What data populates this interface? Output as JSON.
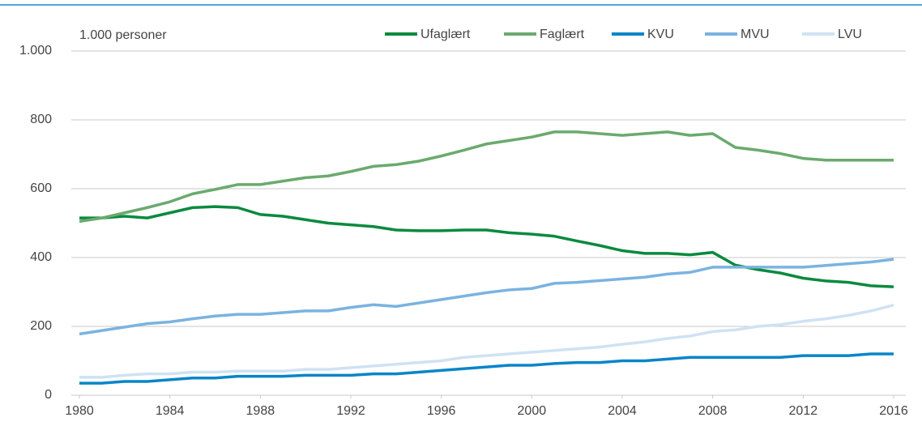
{
  "chart_data": {
    "type": "line",
    "annotation": "1.000 personer",
    "x": [
      1980,
      1981,
      1982,
      1983,
      1984,
      1985,
      1986,
      1987,
      1988,
      1989,
      1990,
      1991,
      1992,
      1993,
      1994,
      1995,
      1996,
      1997,
      1998,
      1999,
      2000,
      2001,
      2002,
      2003,
      2004,
      2005,
      2006,
      2007,
      2008,
      2009,
      2010,
      2011,
      2012,
      2013,
      2014,
      2015,
      2016
    ],
    "xlim": [
      1980,
      2016
    ],
    "xticks": [
      1980,
      1984,
      1988,
      1992,
      1996,
      2000,
      2004,
      2008,
      2012,
      2016
    ],
    "ylim": [
      0,
      1000
    ],
    "yticks": [
      0,
      200,
      400,
      600,
      800,
      {
        "value": 1000,
        "label": "1.000"
      }
    ],
    "grid": true,
    "legend": "top",
    "series": [
      {
        "name": "Ufaglært",
        "color": "#0a8a3e",
        "values": [
          515,
          515,
          520,
          515,
          530,
          545,
          548,
          545,
          525,
          520,
          510,
          500,
          495,
          490,
          480,
          478,
          478,
          480,
          480,
          472,
          468,
          462,
          448,
          435,
          420,
          412,
          412,
          408,
          415,
          378,
          365,
          355,
          340,
          332,
          328,
          318,
          315
        ]
      },
      {
        "name": "Faglært",
        "color": "#6aaa6e",
        "values": [
          505,
          515,
          530,
          545,
          562,
          585,
          598,
          612,
          612,
          622,
          632,
          637,
          650,
          665,
          670,
          680,
          695,
          712,
          730,
          740,
          750,
          765,
          765,
          760,
          755,
          760,
          765,
          755,
          760,
          720,
          712,
          702,
          688,
          683,
          683,
          683,
          683
        ]
      },
      {
        "name": "KVU",
        "color": "#0a85c8",
        "values": [
          35,
          35,
          40,
          40,
          45,
          50,
          50,
          55,
          55,
          55,
          58,
          58,
          58,
          62,
          62,
          67,
          72,
          77,
          82,
          87,
          87,
          92,
          95,
          95,
          100,
          100,
          105,
          110,
          110,
          110,
          110,
          110,
          115,
          115,
          115,
          120,
          120
        ]
      },
      {
        "name": "MVU",
        "color": "#7ab3e0",
        "values": [
          178,
          188,
          198,
          208,
          213,
          222,
          230,
          235,
          235,
          240,
          245,
          245,
          255,
          263,
          258,
          268,
          278,
          288,
          298,
          306,
          310,
          325,
          328,
          333,
          338,
          343,
          352,
          357,
          372,
          372,
          372,
          372,
          372,
          377,
          382,
          387,
          395
        ]
      },
      {
        "name": "LVU",
        "color": "#cfe2f3",
        "values": [
          52,
          52,
          58,
          62,
          62,
          67,
          67,
          70,
          70,
          70,
          75,
          75,
          80,
          85,
          90,
          95,
          100,
          110,
          115,
          120,
          125,
          130,
          135,
          140,
          148,
          155,
          165,
          172,
          185,
          190,
          200,
          205,
          215,
          222,
          232,
          245,
          262
        ]
      }
    ]
  }
}
